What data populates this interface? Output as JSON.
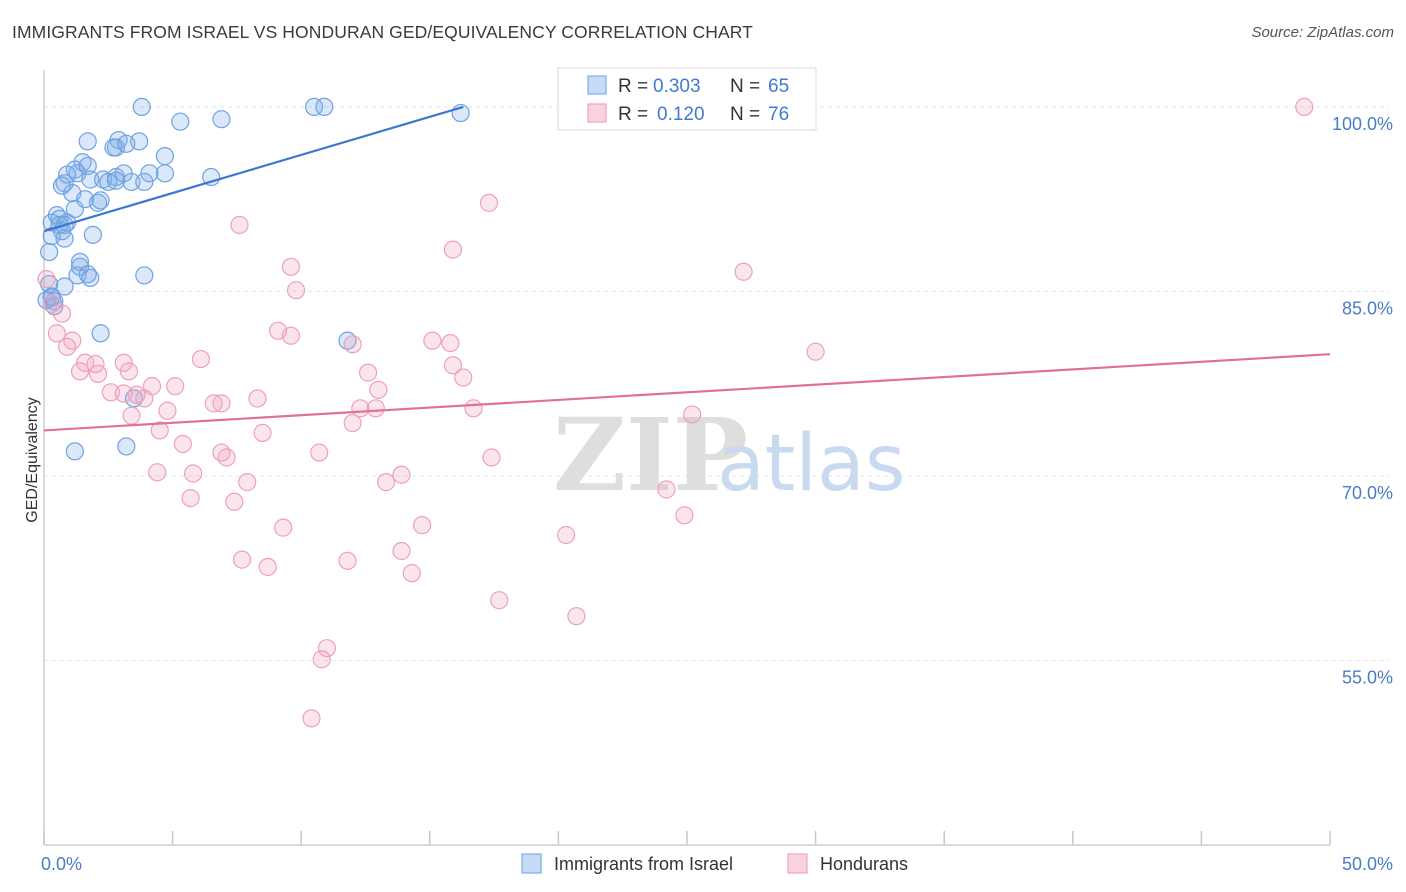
{
  "header": {
    "title": "IMMIGRANTS FROM ISRAEL VS HONDURAN GED/EQUIVALENCY CORRELATION CHART",
    "source": "Source: ZipAtlas.com"
  },
  "watermark": {
    "zip": "ZIP",
    "atlas": "atlas"
  },
  "legend_top": {
    "r_label": "R =",
    "n_label": "N =",
    "rows": [
      {
        "r": "0.303",
        "n": "65",
        "color": "#7aaee8"
      },
      {
        "r": "0.120",
        "n": "76",
        "color": "#f1a3bd"
      }
    ]
  },
  "legend_bottom": [
    {
      "label": "Immigrants from Israel",
      "color": "#7aaee8"
    },
    {
      "label": "Hondurans",
      "color": "#f1a3bd"
    }
  ],
  "chart_data": {
    "type": "scatter",
    "ylabel": "GED/Equivalency",
    "xlim": [
      0,
      50
    ],
    "ylim": [
      40,
      103
    ],
    "x_tick_labels": [
      {
        "value": 0,
        "label": "0.0%"
      },
      {
        "value": 50,
        "label": "50.0%"
      }
    ],
    "y_tick_labels": [
      {
        "value": 100,
        "label": "100.0%"
      },
      {
        "value": 85,
        "label": "85.0%"
      },
      {
        "value": 70,
        "label": "70.0%"
      },
      {
        "value": 55,
        "label": "55.0%"
      }
    ],
    "y_gridlines": [
      100,
      85,
      70,
      55
    ],
    "x_minor_ticks": [
      0,
      5,
      10,
      15,
      20,
      25,
      30,
      35,
      40,
      45,
      50
    ],
    "series": [
      {
        "name": "Immigrants from Israel",
        "color": "#7aaee8",
        "trend": {
          "x0": 0,
          "y0": 89.9,
          "x1": 16.3,
          "y1": 100.0
        },
        "points": [
          [
            3.8,
            100
          ],
          [
            6.9,
            99
          ],
          [
            10.5,
            100
          ],
          [
            10.9,
            100
          ],
          [
            16.2,
            99.5
          ],
          [
            5.3,
            98.8
          ],
          [
            1.7,
            97.2
          ],
          [
            2.9,
            97.3
          ],
          [
            3.7,
            97.2
          ],
          [
            2.7,
            96.7
          ],
          [
            2.8,
            96.7
          ],
          [
            3.2,
            97.0
          ],
          [
            1.5,
            95.5
          ],
          [
            4.7,
            96
          ],
          [
            1.2,
            94.9
          ],
          [
            1.3,
            94.6
          ],
          [
            1.7,
            95.2
          ],
          [
            1.8,
            94.1
          ],
          [
            2.3,
            94.1
          ],
          [
            2.8,
            94.3
          ],
          [
            3.1,
            94.6
          ],
          [
            4.1,
            94.6
          ],
          [
            4.7,
            94.6
          ],
          [
            0.9,
            94.5
          ],
          [
            0.8,
            93.8
          ],
          [
            0.7,
            93.6
          ],
          [
            2.5,
            93.9
          ],
          [
            2.8,
            94.0
          ],
          [
            3.4,
            93.9
          ],
          [
            3.9,
            93.9
          ],
          [
            6.5,
            94.3
          ],
          [
            1.1,
            93.0
          ],
          [
            1.6,
            92.5
          ],
          [
            2.1,
            92.2
          ],
          [
            2.2,
            92.4
          ],
          [
            1.2,
            91.7
          ],
          [
            0.5,
            91.2
          ],
          [
            0.6,
            90.9
          ],
          [
            0.9,
            90.6
          ],
          [
            0.3,
            90.6
          ],
          [
            0.6,
            90.4
          ],
          [
            0.7,
            89.9
          ],
          [
            0.3,
            89.5
          ],
          [
            1.9,
            89.6
          ],
          [
            0.8,
            89.3
          ],
          [
            0.8,
            90.4
          ],
          [
            0.2,
            88.2
          ],
          [
            1.4,
            87.4
          ],
          [
            1.4,
            87.0
          ],
          [
            1.3,
            86.3
          ],
          [
            1.8,
            86.1
          ],
          [
            0.8,
            85.4
          ],
          [
            1.7,
            86.4
          ],
          [
            3.9,
            86.3
          ],
          [
            0.2,
            85.6
          ],
          [
            0.3,
            84.6
          ],
          [
            0.4,
            83.8
          ],
          [
            0.1,
            84.3
          ],
          [
            0.3,
            84.5
          ],
          [
            0.4,
            84.2
          ],
          [
            2.2,
            81.6
          ],
          [
            11.8,
            81.0
          ],
          [
            3.5,
            76.3
          ],
          [
            3.2,
            72.4
          ],
          [
            1.2,
            72.0
          ]
        ]
      },
      {
        "name": "Hondurans",
        "color": "#f1a3bd",
        "trend": {
          "x0": 0,
          "y0": 73.7,
          "x1": 50,
          "y1": 79.9
        },
        "points": [
          [
            28.5,
            100
          ],
          [
            49.0,
            100
          ],
          [
            17.3,
            92.2
          ],
          [
            7.6,
            90.4
          ],
          [
            15.9,
            88.4
          ],
          [
            27.2,
            86.6
          ],
          [
            9.6,
            87.0
          ],
          [
            9.8,
            85.1
          ],
          [
            0.1,
            86.0
          ],
          [
            0.3,
            84.0
          ],
          [
            0.7,
            83.2
          ],
          [
            0.5,
            81.6
          ],
          [
            1.1,
            81.0
          ],
          [
            0.9,
            80.5
          ],
          [
            9.1,
            81.8
          ],
          [
            9.6,
            81.4
          ],
          [
            12.0,
            80.7
          ],
          [
            15.1,
            81.0
          ],
          [
            15.8,
            80.8
          ],
          [
            30.0,
            80.1
          ],
          [
            6.1,
            79.5
          ],
          [
            1.6,
            79.2
          ],
          [
            2.0,
            79.1
          ],
          [
            3.1,
            79.2
          ],
          [
            3.3,
            78.5
          ],
          [
            1.4,
            78.5
          ],
          [
            2.1,
            78.3
          ],
          [
            12.6,
            78.4
          ],
          [
            15.9,
            79.0
          ],
          [
            16.3,
            78.0
          ],
          [
            5.1,
            77.3
          ],
          [
            4.2,
            77.3
          ],
          [
            2.6,
            76.8
          ],
          [
            3.1,
            76.7
          ],
          [
            3.6,
            76.6
          ],
          [
            3.9,
            76.3
          ],
          [
            8.3,
            76.3
          ],
          [
            13.0,
            77.0
          ],
          [
            6.6,
            75.9
          ],
          [
            6.9,
            75.9
          ],
          [
            12.3,
            75.5
          ],
          [
            12.9,
            75.5
          ],
          [
            16.7,
            75.5
          ],
          [
            4.8,
            75.3
          ],
          [
            3.4,
            74.9
          ],
          [
            25.2,
            75.0
          ],
          [
            12.0,
            74.3
          ],
          [
            4.5,
            73.7
          ],
          [
            8.5,
            73.5
          ],
          [
            5.4,
            72.6
          ],
          [
            6.9,
            71.9
          ],
          [
            7.1,
            71.5
          ],
          [
            10.7,
            71.9
          ],
          [
            17.4,
            71.5
          ],
          [
            4.4,
            70.3
          ],
          [
            5.8,
            70.2
          ],
          [
            7.9,
            69.5
          ],
          [
            13.3,
            69.5
          ],
          [
            13.9,
            70.1
          ],
          [
            24.2,
            68.9
          ],
          [
            5.7,
            68.2
          ],
          [
            7.4,
            67.9
          ],
          [
            24.9,
            66.8
          ],
          [
            9.3,
            65.8
          ],
          [
            14.7,
            66.0
          ],
          [
            20.3,
            65.2
          ],
          [
            7.7,
            63.2
          ],
          [
            11.8,
            63.1
          ],
          [
            13.9,
            63.9
          ],
          [
            8.7,
            62.6
          ],
          [
            14.3,
            62.1
          ],
          [
            17.7,
            59.9
          ],
          [
            20.7,
            58.6
          ],
          [
            11.0,
            56.0
          ],
          [
            10.8,
            55.1
          ],
          [
            10.4,
            50.3
          ]
        ]
      }
    ]
  }
}
